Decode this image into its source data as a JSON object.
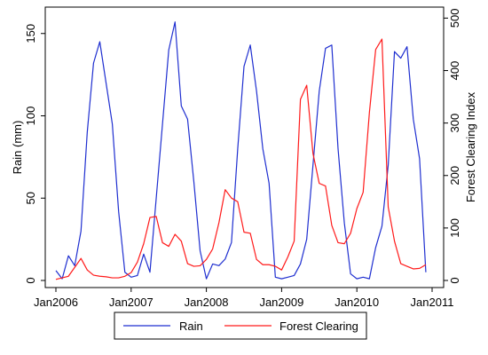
{
  "chart_data": {
    "type": "line",
    "x_start": "2006-01",
    "x_interval": "month",
    "x_ticks": [
      "Jan2006",
      "Jan2007",
      "Jan2008",
      "Jan2009",
      "Jan2010",
      "Jan2011"
    ],
    "ylabel_left": "Rain (mm)",
    "ylabel_right": "Forest Clearing Index",
    "ylim_left": [
      0,
      160
    ],
    "ylim_right": [
      0,
      500
    ],
    "yticks_left": [
      0,
      50,
      100,
      150
    ],
    "yticks_right": [
      0,
      100,
      200,
      300,
      400,
      500
    ],
    "grid": false,
    "legend_position": "bottom",
    "series": [
      {
        "name": "Rain",
        "axis": "left",
        "color": "#1f2fd0",
        "values": [
          6,
          1,
          15,
          9,
          30,
          90,
          132,
          145,
          120,
          95,
          42,
          5,
          2,
          3,
          16,
          5,
          50,
          95,
          140,
          157,
          106,
          98,
          60,
          18,
          1,
          10,
          9,
          13,
          23,
          80,
          130,
          143,
          115,
          80,
          59,
          2,
          1,
          2,
          3,
          10,
          25,
          70,
          115,
          141,
          143,
          80,
          35,
          4,
          1,
          2,
          1,
          20,
          33,
          70,
          139,
          135,
          142,
          98,
          74,
          5
        ]
      },
      {
        "name": "Forest Clearing",
        "axis": "right",
        "color": "#ff1a1a",
        "values": [
          2,
          5,
          8,
          25,
          42,
          20,
          10,
          8,
          7,
          5,
          5,
          8,
          15,
          35,
          70,
          120,
          122,
          72,
          65,
          88,
          75,
          32,
          27,
          28,
          40,
          60,
          110,
          173,
          157,
          150,
          92,
          90,
          40,
          30,
          30,
          27,
          20,
          45,
          75,
          345,
          372,
          242,
          185,
          180,
          105,
          72,
          70,
          90,
          137,
          168,
          320,
          440,
          460,
          140,
          75,
          32,
          27,
          22,
          23,
          30
        ]
      }
    ]
  }
}
